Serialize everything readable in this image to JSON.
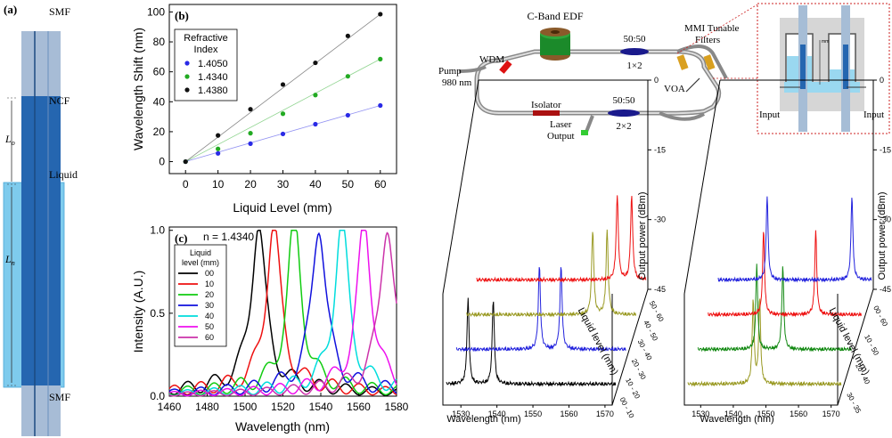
{
  "panel_a": {
    "label": "(a)",
    "smf_top": "SMF",
    "ncf": "NCF",
    "liquid": "Liquid",
    "lo": "L",
    "lo_sub": "o",
    "ln": "L",
    "ln_sub": "n",
    "smf_bottom": "SMF"
  },
  "panel_b": {
    "label": "(b)",
    "chart_data": {
      "type": "scatter",
      "title": "",
      "xlabel": "Liquid Level (mm)",
      "ylabel": "Wavelength Shift (nm)",
      "xlim": [
        -5,
        65
      ],
      "ylim": [
        -8,
        105
      ],
      "xticks": [
        "0",
        "10",
        "20",
        "30",
        "40",
        "50",
        "60"
      ],
      "yticks": [
        "0",
        "20",
        "40",
        "60",
        "80",
        "100"
      ],
      "legend_title_1": "Refractive",
      "legend_title_2": "Index",
      "x": [
        0,
        10,
        20,
        30,
        40,
        50,
        60
      ],
      "series": [
        {
          "name": "1.4050",
          "color": "#2a2ae6",
          "values": [
            0,
            5.5,
            12,
            18.5,
            25,
            31,
            37.5
          ]
        },
        {
          "name": "1.4340",
          "color": "#22aa22",
          "values": [
            0,
            8.5,
            19,
            32,
            44.5,
            57,
            68.5
          ]
        },
        {
          "name": "1.4380",
          "color": "#111111",
          "values": [
            0,
            17.5,
            35,
            51.5,
            66,
            84,
            98.5
          ]
        }
      ]
    }
  },
  "panel_c": {
    "label": "(c)",
    "annotation": "n = 1.4340",
    "chart_data": {
      "type": "line",
      "xlabel": "Wavelength (nm)",
      "ylabel": "Intensity (A.U.)",
      "xlim": [
        1460,
        1580
      ],
      "ylim": [
        0,
        1.02
      ],
      "xticks": [
        "1460",
        "1480",
        "1500",
        "1520",
        "1540",
        "1560",
        "1580"
      ],
      "yticks": [
        "0.0",
        "0.5",
        "1.0"
      ],
      "legend_title_1": "Liquid",
      "legend_title_2": "level (mm)",
      "series": [
        {
          "name": "00",
          "color": "#000000",
          "peak": 1507,
          "width": 4.5
        },
        {
          "name": "10",
          "color": "#ee1111",
          "peak": 1515,
          "width": 4.5
        },
        {
          "name": "20",
          "color": "#11cc11",
          "peak": 1526,
          "width": 4.5
        },
        {
          "name": "30",
          "color": "#1111dd",
          "peak": 1539,
          "width": 4.5
        },
        {
          "name": "40",
          "color": "#00dddd",
          "peak": 1551,
          "width": 4.5
        },
        {
          "name": "50",
          "color": "#ee11ee",
          "peak": 1563,
          "width": 4.5
        },
        {
          "name": "60",
          "color": "#cc33aa",
          "peak": 1575,
          "width": 4.5
        }
      ]
    }
  },
  "setup": {
    "edf": "C-Band EDF",
    "coupler1": "50:50",
    "coupler1b": "1×2",
    "mmi1": "MMI Tunable",
    "mmi2": "Filters",
    "wdm": "WDM",
    "pump1": "Pump",
    "pump2": "980 nm",
    "voa": "VOA",
    "isolator": "Isolator",
    "laser1": "Laser",
    "laser2": "Output",
    "coupler2": "50:50",
    "coupler2b": "2×2",
    "input_left": "Input",
    "input_right": "Input",
    "scale_label": "mm"
  },
  "panel_d": {
    "chart_data": {
      "type": "line",
      "xlabel": "Wavelength (nm)",
      "ylabel": "Output power (dBm)",
      "zlabel": "Liquid level (mm)",
      "xticks": [
        "1530",
        "1540",
        "1550",
        "1560",
        "1570"
      ],
      "yticks": [
        "0",
        "-15",
        "-30",
        "-45"
      ],
      "zticks": [
        "00 - 10",
        "10 - 20",
        "20 - 30",
        "30 - 40",
        "40 - 50",
        "50 - 60"
      ],
      "series": [
        {
          "name": "00 - 10",
          "color": "#000000",
          "peaks": [
            1531,
            1538
          ]
        },
        {
          "name": "20 - 30",
          "color": "#2222dd",
          "peaks": [
            1548,
            1554
          ]
        },
        {
          "name": "40 - 50",
          "color": "#999922",
          "peaks": [
            1560,
            1564
          ]
        },
        {
          "name": "50 - 60",
          "color": "#ee1111",
          "peaks": [
            1564,
            1568
          ]
        }
      ]
    }
  },
  "panel_e": {
    "chart_data": {
      "type": "line",
      "xlabel": "Wavelength (nm)",
      "ylabel": "Output power (dBm)",
      "zlabel": "Liquid level (mm)",
      "xticks": [
        "1530",
        "1540",
        "1550",
        "1560",
        "1570"
      ],
      "yticks": [
        "0",
        "-15",
        "-30",
        "-45"
      ],
      "zticks": [
        "30 - 35",
        "20 - 40",
        "10 - 50",
        "00 - 60"
      ],
      "series": [
        {
          "name": "30 - 35",
          "color": "#999922",
          "peaks": [
            1545,
            1547
          ]
        },
        {
          "name": "20 - 40",
          "color": "#118811",
          "peaks": [
            1543,
            1551
          ]
        },
        {
          "name": "10 - 50",
          "color": "#ee1111",
          "peaks": [
            1542,
            1558
          ]
        },
        {
          "name": "00 - 60",
          "color": "#2222dd",
          "peaks": [
            1540,
            1566
          ]
        }
      ]
    }
  }
}
